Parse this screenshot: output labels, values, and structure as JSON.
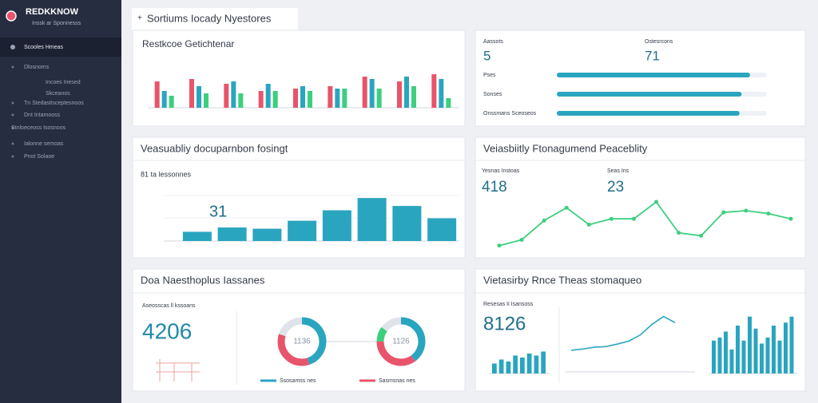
{
  "sidebar": {
    "brand": "REDKKNOW",
    "tagline": "Inssk ar Sponnesss",
    "items": [
      "Scooles Hmeas",
      "Dlosnoms",
      "Incoes Inesed",
      "Skceanos",
      "Tn Stedastisceptesnoos",
      "Dnt Intamooss",
      "Stnloeceoss Isosnoos",
      "Ialonne semoas",
      "Pnot Solaoe"
    ]
  },
  "header": {
    "title": "Sortiums Iocady Nyestores"
  },
  "panels": {
    "revenue": {
      "title": "Restkcoe Getichtenar",
      "type": "bar",
      "ylim": [
        0,
        100
      ],
      "series": [
        {
          "color": "#e8546a",
          "values": [
            55,
            60,
            50,
            35,
            40,
            45,
            65,
            55,
            70
          ]
        },
        {
          "color": "#2aa5c0",
          "values": [
            35,
            45,
            55,
            50,
            45,
            40,
            60,
            65,
            60
          ]
        },
        {
          "color": "#3ccf7e",
          "values": [
            25,
            30,
            30,
            35,
            35,
            40,
            40,
            45,
            20
          ]
        }
      ]
    },
    "progress": {
      "kpis": [
        {
          "label": "Aassots",
          "value": 5
        },
        {
          "label": "Ostesrcons",
          "value": 71
        }
      ],
      "rows": [
        {
          "label": "Pses",
          "value": 92
        },
        {
          "label": "Sonses",
          "value": 88
        },
        {
          "label": "Onssmans Sceoseos",
          "value": 87
        }
      ],
      "xlim": [
        0,
        100
      ],
      "color": "#2aa5c0"
    },
    "distribution": {
      "title": "Veasuabliy docuparnbon fosingt",
      "subtitle": "81 ta lessonnes",
      "kpi": 31,
      "type": "bar",
      "values": [
        15,
        22,
        20,
        33,
        50,
        70,
        57,
        37
      ],
      "ylim": [
        0,
        100
      ],
      "color": "#2aa5c0"
    },
    "trend": {
      "title": "Veiasbiitly Ftonagumend Peaceblity",
      "kpis": [
        {
          "label": "Yesnas Instoas",
          "value": 418
        },
        {
          "label": "Seas Ins",
          "value": 23
        }
      ],
      "type": "line",
      "values": [
        14,
        24,
        57,
        79,
        50,
        60,
        60,
        89,
        36,
        31,
        71,
        74,
        69,
        60
      ],
      "ylim": [
        0,
        100
      ],
      "color": "#3ccf7e"
    },
    "donuts": {
      "title": "Doa Naesthoplus Iassanes",
      "kpi_label": "Aseosscas ll kssoans",
      "kpi": 4206,
      "items": [
        {
          "center": 1136,
          "legend": "Ssosamss nes",
          "values": [
            45,
            35,
            20
          ],
          "colors": [
            "#2aa5c0",
            "#e8546a",
            "#dfe3ea"
          ]
        },
        {
          "center": 1126,
          "legend": "Sasmsnas nes",
          "values": [
            40,
            35,
            10,
            15
          ],
          "colors": [
            "#2aa5c0",
            "#e8546a",
            "#3ccf7e",
            "#dfe3ea"
          ]
        }
      ]
    },
    "mixed": {
      "title": "Vietasirby Rnce Theas stomaqueo",
      "kpi_label": "Resesas Ii Isansoss",
      "kpi": 8126,
      "color": "#2aa5c0",
      "small_bars": {
        "values": [
          25,
          35,
          30,
          45,
          40,
          50,
          45,
          55
        ],
        "ylim": [
          0,
          100
        ]
      },
      "line": {
        "values": [
          30,
          32,
          35,
          36,
          40,
          45,
          55,
          72,
          85,
          75
        ],
        "ylim": [
          0,
          100
        ]
      },
      "bars": {
        "values": [
          55,
          60,
          70,
          40,
          80,
          55,
          95,
          75,
          50,
          60,
          80,
          55,
          85,
          95
        ],
        "ylim": [
          0,
          100
        ]
      }
    }
  }
}
